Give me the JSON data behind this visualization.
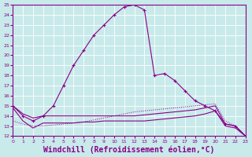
{
  "background_color": "#c8eaea",
  "grid_color": "#ffffff",
  "line_color": "#880088",
  "xlabel": "Windchill (Refroidissement éolien,°C)",
  "xlabel_fontsize": 7,
  "ylim": [
    12,
    25
  ],
  "xlim": [
    0,
    23
  ],
  "yticks": [
    12,
    13,
    14,
    15,
    16,
    17,
    18,
    19,
    20,
    21,
    22,
    23,
    24,
    25
  ],
  "xticks": [
    0,
    1,
    2,
    3,
    4,
    5,
    6,
    7,
    8,
    9,
    10,
    11,
    12,
    13,
    14,
    15,
    16,
    17,
    18,
    19,
    20,
    21,
    22,
    23
  ],
  "series": [
    {
      "x": [
        0,
        1,
        2,
        3,
        4,
        5,
        6,
        7,
        8,
        9,
        10,
        11,
        12,
        13,
        14,
        15,
        16,
        17,
        18,
        19,
        20,
        21,
        22,
        23
      ],
      "y": [
        15.0,
        14.0,
        13.5,
        14.0,
        15.0,
        17.0,
        19.0,
        20.5,
        22.0,
        23.0,
        24.0,
        24.8,
        25.0,
        24.5,
        18.0,
        18.2,
        17.5,
        16.5,
        15.5,
        15.0,
        14.5,
        13.2,
        13.0,
        12.0
      ],
      "marker": "+",
      "linestyle": "-",
      "linewidth": 0.8
    },
    {
      "x": [
        0,
        1,
        2,
        3,
        4,
        5,
        6,
        7,
        8,
        9,
        10,
        11,
        12,
        13,
        14,
        15,
        16,
        17,
        18,
        19,
        20,
        21,
        22,
        23
      ],
      "y": [
        13.5,
        13.2,
        13.0,
        13.0,
        13.1,
        13.2,
        13.3,
        13.4,
        13.6,
        13.8,
        14.0,
        14.2,
        14.4,
        14.5,
        14.6,
        14.7,
        14.8,
        14.9,
        15.0,
        15.1,
        15.2,
        13.5,
        13.0,
        12.0
      ],
      "marker": null,
      "linestyle": ":",
      "linewidth": 0.7
    },
    {
      "x": [
        0,
        1,
        2,
        3,
        4,
        5,
        6,
        7,
        8,
        9,
        10,
        11,
        12,
        13,
        14,
        15,
        16,
        17,
        18,
        19,
        20,
        21,
        22,
        23
      ],
      "y": [
        14.8,
        13.5,
        12.8,
        13.3,
        13.3,
        13.3,
        13.3,
        13.4,
        13.4,
        13.5,
        13.5,
        13.5,
        13.5,
        13.5,
        13.6,
        13.7,
        13.8,
        13.9,
        14.0,
        14.2,
        14.5,
        13.0,
        12.8,
        12.0
      ],
      "marker": null,
      "linestyle": "-",
      "linewidth": 0.8
    },
    {
      "x": [
        0,
        1,
        2,
        3,
        4,
        5,
        6,
        7,
        8,
        9,
        10,
        11,
        12,
        13,
        14,
        15,
        16,
        17,
        18,
        19,
        20,
        21,
        22,
        23
      ],
      "y": [
        15.0,
        14.2,
        13.8,
        14.0,
        14.0,
        14.0,
        14.0,
        14.0,
        14.0,
        14.0,
        14.0,
        14.0,
        14.0,
        14.1,
        14.2,
        14.3,
        14.4,
        14.5,
        14.6,
        14.8,
        15.0,
        13.2,
        13.0,
        12.0
      ],
      "marker": null,
      "linestyle": "-",
      "linewidth": 0.8
    }
  ]
}
